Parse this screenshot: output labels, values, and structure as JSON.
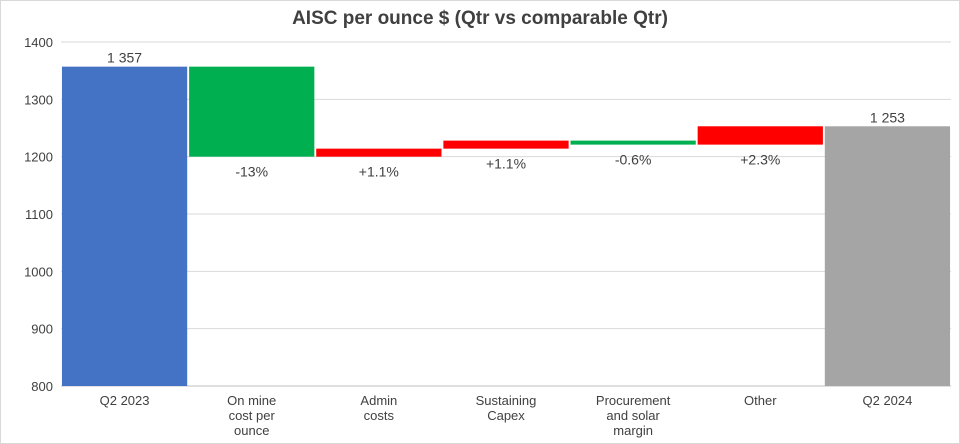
{
  "chart_data": {
    "type": "bar",
    "subtype": "waterfall",
    "title": "AISC per ounce $  (Qtr vs comparable Qtr)",
    "xlabel": "",
    "ylabel": "",
    "ylim": [
      800,
      1400
    ],
    "yticks": [
      800,
      900,
      1000,
      1100,
      1200,
      1300,
      1400
    ],
    "grid": true,
    "legend": "none",
    "colors": {
      "total_start": "#4472c4",
      "decrease": "#00b050",
      "increase": "#ff0000",
      "total_end": "#a5a5a5"
    },
    "categories": [
      [
        "Q2 2023"
      ],
      [
        "On mine",
        "cost per",
        "ounce"
      ],
      [
        "Admin",
        "costs"
      ],
      [
        "Sustaining",
        "Capex"
      ],
      [
        "Procurement",
        "and solar",
        "margin"
      ],
      [
        "Other"
      ],
      [
        "Q2 2024"
      ]
    ],
    "bars": [
      {
        "kind": "total",
        "color": "total_start",
        "start": 800,
        "end": 1357,
        "label": "1 357",
        "label_position": "top"
      },
      {
        "kind": "delta",
        "color": "decrease",
        "start": 1357,
        "end": 1200,
        "label": "-13%",
        "label_position": "below"
      },
      {
        "kind": "delta",
        "color": "increase",
        "start": 1200,
        "end": 1214,
        "label": "+1.1%",
        "label_position": "below"
      },
      {
        "kind": "delta",
        "color": "increase",
        "start": 1214,
        "end": 1228,
        "label": "+1.1%",
        "label_position": "below"
      },
      {
        "kind": "delta",
        "color": "decrease",
        "start": 1228,
        "end": 1221,
        "label": "-0.6%",
        "label_position": "below"
      },
      {
        "kind": "delta",
        "color": "increase",
        "start": 1221,
        "end": 1253,
        "label": "+2.3%",
        "label_position": "below"
      },
      {
        "kind": "total",
        "color": "total_end",
        "start": 800,
        "end": 1253,
        "label": "1 253",
        "label_position": "top"
      }
    ]
  }
}
